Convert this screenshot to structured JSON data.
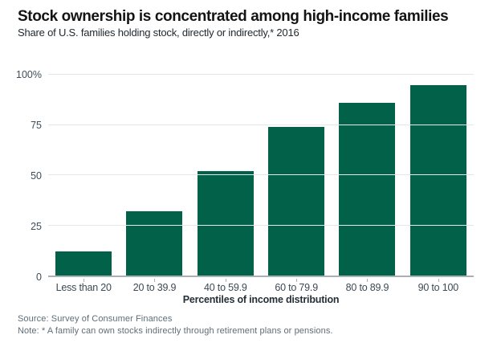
{
  "header": {
    "title": "Stock ownership is concentrated among high-income families",
    "subtitle": "Share of U.S. families holding stock, directly or indirectly,* 2016"
  },
  "chart_data": {
    "type": "bar",
    "title": "Stock ownership is concentrated among high-income families",
    "subtitle": "Share of U.S. families holding stock, directly or indirectly,* 2016",
    "categories": [
      "Less than 20",
      "20 to 39.9",
      "40 to 59.9",
      "60 to 79.9",
      "80 to 89.9",
      "90 to 100"
    ],
    "values": [
      12,
      32,
      52,
      74,
      86,
      95
    ],
    "xlabel": "Percentiles of income distribution",
    "ylabel": "",
    "ylim": [
      0,
      100
    ],
    "yticks": [
      {
        "value": 100,
        "label": "100%"
      },
      {
        "value": 75,
        "label": "75"
      },
      {
        "value": 50,
        "label": "50"
      },
      {
        "value": 25,
        "label": "25"
      },
      {
        "value": 0,
        "label": "0"
      }
    ],
    "grid": true,
    "legend": "none",
    "bar_color": "#026149"
  },
  "footer": {
    "source": "Source: Survey of Consumer Finances",
    "note": "Note: * A family can own stocks indirectly through retirement plans or pensions."
  }
}
